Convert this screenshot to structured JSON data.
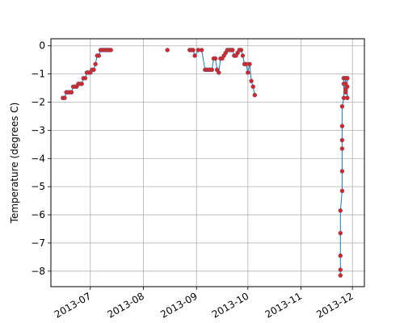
{
  "chart_data": {
    "type": "scatter",
    "title": "",
    "xlabel": "",
    "ylabel": "Temperature (degrees C)",
    "grid": true,
    "legend": "none",
    "colors": {
      "line": "#1f77b4",
      "marker": "#d62728",
      "grid": "#b0b0b0",
      "axes": "#000000"
    },
    "xlim": [
      "2013-06-08",
      "2013-12-08"
    ],
    "ylim": [
      -8.55,
      0.25
    ],
    "x_ticks": [
      {
        "date": "2013-07-01",
        "label": "2013-07"
      },
      {
        "date": "2013-08-01",
        "label": "2013-08"
      },
      {
        "date": "2013-09-01",
        "label": "2013-09"
      },
      {
        "date": "2013-10-01",
        "label": "2013-10"
      },
      {
        "date": "2013-11-01",
        "label": "2013-11"
      },
      {
        "date": "2013-12-01",
        "label": "2013-12"
      }
    ],
    "y_ticks": [
      {
        "value": 0,
        "label": "0"
      },
      {
        "value": -1,
        "label": "−1"
      },
      {
        "value": -2,
        "label": "−2"
      },
      {
        "value": -3,
        "label": "−3"
      },
      {
        "value": -4,
        "label": "−4"
      },
      {
        "value": -5,
        "label": "−5"
      },
      {
        "value": -6,
        "label": "−6"
      },
      {
        "value": -7,
        "label": "−7"
      },
      {
        "value": -8,
        "label": "−8"
      }
    ],
    "series": [
      {
        "x": [
          "2013-06-15",
          "2013-06-16",
          "2013-06-17",
          "2013-06-18",
          "2013-06-19",
          "2013-06-20",
          "2013-06-21",
          "2013-06-22",
          "2013-06-23",
          "2013-06-24",
          "2013-06-25",
          "2013-06-26",
          "2013-06-27",
          "2013-06-28",
          "2013-06-29",
          "2013-06-30",
          "2013-07-01",
          "2013-07-02",
          "2013-07-03",
          "2013-07-04",
          "2013-07-05",
          "2013-07-06",
          "2013-07-07",
          "2013-07-08",
          "2013-07-09",
          "2013-07-10",
          "2013-07-11",
          "2013-07-12",
          "2013-07-13",
          "2013-08-15",
          "2013-08-28",
          "2013-08-29",
          "2013-08-30",
          "2013-08-31",
          "2013-09-02",
          "2013-09-04",
          "2013-09-06",
          "2013-09-07",
          "2013-09-08",
          "2013-09-09",
          "2013-09-10",
          "2013-09-11",
          "2013-09-12",
          "2013-09-13",
          "2013-09-14",
          "2013-09-15",
          "2013-09-16",
          "2013-09-17",
          "2013-09-18",
          "2013-09-19",
          "2013-09-20",
          "2013-09-21",
          "2013-09-22",
          "2013-09-23",
          "2013-09-24",
          "2013-09-25",
          "2013-09-26",
          "2013-09-27",
          "2013-09-28",
          "2013-09-29",
          "2013-09-30",
          "2013-10-01",
          "2013-10-02",
          "2013-10-03",
          "2013-10-04",
          "2013-10-05",
          "2013-11-24",
          "2013-11-24",
          "2013-11-24",
          "2013-11-24",
          "2013-11-24",
          "2013-11-25",
          "2013-11-25",
          "2013-11-25",
          "2013-11-25",
          "2013-11-25",
          "2013-11-25",
          "2013-11-26",
          "2013-11-26",
          "2013-11-26",
          "2013-11-26",
          "2013-11-26",
          "2013-11-26",
          "2013-11-27",
          "2013-11-27",
          "2013-11-27",
          "2013-11-27",
          "2013-11-28",
          "2013-11-28",
          "2013-11-28",
          "2013-11-28"
        ],
        "y": [
          -1.85,
          -1.85,
          -1.65,
          -1.65,
          -1.65,
          -1.65,
          -1.45,
          -1.45,
          -1.45,
          -1.35,
          -1.35,
          -1.35,
          -1.15,
          -1.15,
          -0.95,
          -0.95,
          -0.95,
          -0.85,
          -0.85,
          -0.65,
          -0.35,
          -0.35,
          -0.15,
          -0.15,
          -0.15,
          -0.15,
          -0.15,
          -0.15,
          -0.15,
          -0.15,
          -0.15,
          -0.15,
          -0.15,
          -0.35,
          -0.15,
          -0.15,
          -0.85,
          -0.85,
          -0.85,
          -0.85,
          -0.85,
          -0.45,
          -0.45,
          -0.85,
          -0.95,
          -0.45,
          -0.45,
          -0.35,
          -0.25,
          -0.15,
          -0.15,
          -0.15,
          -0.15,
          -0.35,
          -0.35,
          -0.25,
          -0.15,
          -0.15,
          -0.35,
          -0.65,
          -0.65,
          -0.95,
          -0.65,
          -1.25,
          -1.45,
          -1.75,
          -8.15,
          -7.95,
          -7.45,
          -6.65,
          -5.85,
          -5.15,
          -4.45,
          -3.65,
          -3.35,
          -2.85,
          -2.15,
          -1.85,
          -1.35,
          -1.15,
          -1.15,
          -1.15,
          -1.35,
          -1.65,
          -1.55,
          -1.35,
          -1.15,
          -1.85,
          -1.45,
          -1.15,
          -1.15
        ]
      }
    ]
  }
}
